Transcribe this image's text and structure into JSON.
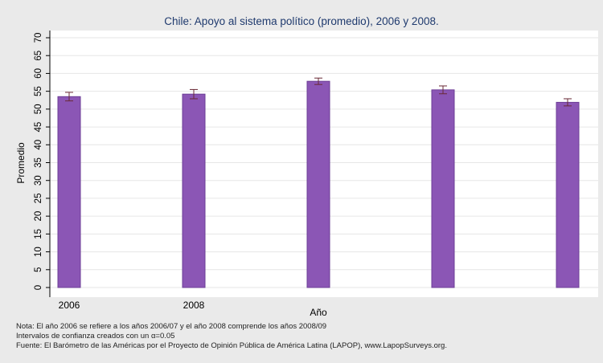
{
  "chart_data": {
    "type": "bar",
    "title": "Chile: Apoyo al sistema político (promedio), 2006 y 2008.",
    "xlabel": "Año",
    "ylabel": "Promedio",
    "ylim": [
      0,
      70
    ],
    "y_ticks": [
      0,
      5,
      10,
      15,
      20,
      25,
      30,
      35,
      40,
      45,
      50,
      55,
      60,
      65,
      70
    ],
    "categories": [
      "2006",
      "2008",
      "",
      "",
      ""
    ],
    "values": [
      53.5,
      54.2,
      57.8,
      55.4,
      51.9
    ],
    "ci_low": [
      52.3,
      52.9,
      56.9,
      54.3,
      50.9
    ],
    "ci_high": [
      54.7,
      55.5,
      58.7,
      56.5,
      52.9
    ],
    "grid": true,
    "colors": {
      "bar": "#8b56b5",
      "bar_edge": "#6e3f97",
      "error_bar": "#6a2a36",
      "plot_bg": "#ffffff",
      "grid": "#e6e6e6"
    }
  },
  "notes": [
    "Nota: El año 2006 se refiere a los años 2006/07 y el año 2008 comprende los años 2008/09",
    "Intervalos de confianza creados con un α=0.05",
    "Fuente: El Barómetro de las Américas por el Proyecto de Opinión Pública de América Latina (LAPOP), www.LapopSurveys.org."
  ]
}
